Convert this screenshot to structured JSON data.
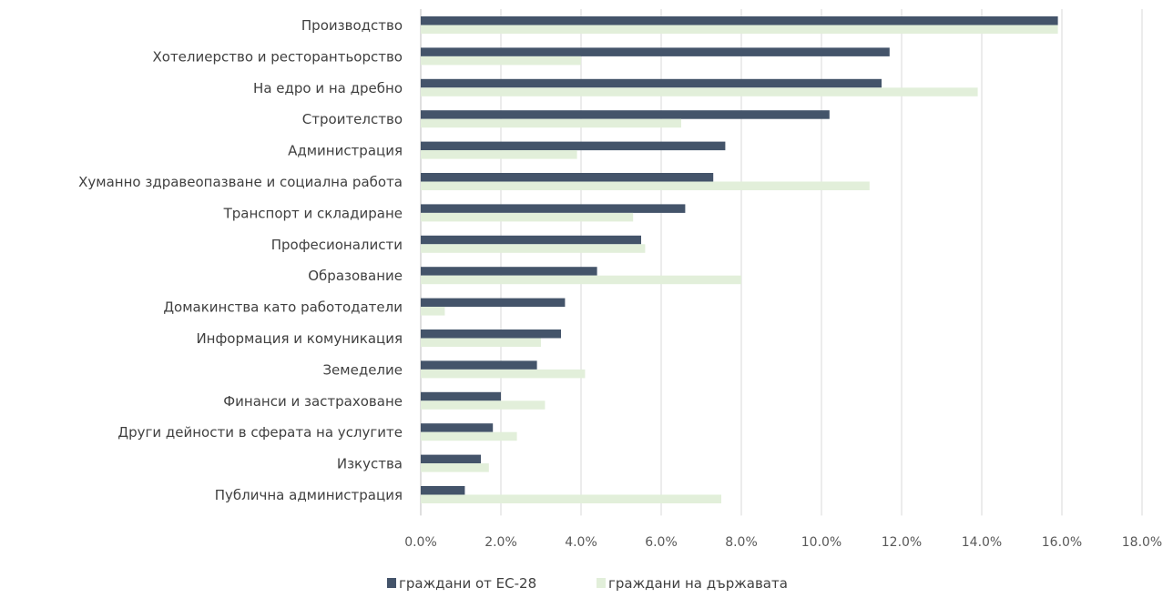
{
  "chart_data": {
    "type": "bar",
    "orientation": "horizontal",
    "categories": [
      "Производство",
      "Хотелиерство и ресторантьорство",
      "На едро и на дребно",
      "Строителство",
      "Администрация",
      "Хуманно здравеопазване и социална работа",
      "Транспорт и складиране",
      "Професионалисти",
      "Образование",
      "Домакинства като работодатели",
      "Информация и комуникация",
      "Земеделие",
      "Финанси и застраховане",
      "Други дейности в сферата на услугите",
      "Изкуства",
      "Публична администрация"
    ],
    "series": [
      {
        "name": "граждани от ЕС-28",
        "color": "#44546a",
        "values": [
          15.9,
          11.7,
          11.5,
          10.2,
          7.6,
          7.3,
          6.6,
          5.5,
          4.4,
          3.6,
          3.5,
          2.9,
          2.0,
          1.8,
          1.5,
          1.1
        ]
      },
      {
        "name": "граждани на държавата",
        "color": "#e2efda",
        "values": [
          15.9,
          4.0,
          13.9,
          6.5,
          3.9,
          11.2,
          5.3,
          5.6,
          8.0,
          0.6,
          3.0,
          4.1,
          3.1,
          2.4,
          1.7,
          7.5
        ]
      }
    ],
    "xlim": [
      0,
      18
    ],
    "x_ticks": [
      "0.0%",
      "2.0%",
      "4.0%",
      "6.0%",
      "8.0%",
      "10.0%",
      "12.0%",
      "14.0%",
      "16.0%",
      "18.0%"
    ],
    "x_tick_values": [
      0,
      2,
      4,
      6,
      8,
      10,
      12,
      14,
      16,
      18
    ],
    "grid": "vertical",
    "legend": "bottom-center",
    "title": "",
    "xlabel": "",
    "ylabel": ""
  }
}
